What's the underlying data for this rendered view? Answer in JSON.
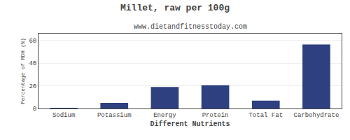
{
  "chart_data": {
    "type": "bar",
    "title": "Millet, raw per 100g",
    "subtitle": "www.dietandfitnesstoday.com",
    "xlabel": "Different Nutrients",
    "ylabel": "Percentage of RDH (%)",
    "categories": [
      "Sodium",
      "Potassium",
      "Energy",
      "Protein",
      "Total Fat",
      "Carbohydrate"
    ],
    "values": [
      0.4,
      5.0,
      19.0,
      20.5,
      7.0,
      56.5
    ],
    "color": "#2e4080",
    "ylim": [
      0,
      66
    ],
    "yticks": [
      0,
      20,
      40,
      60
    ],
    "grid": true
  }
}
